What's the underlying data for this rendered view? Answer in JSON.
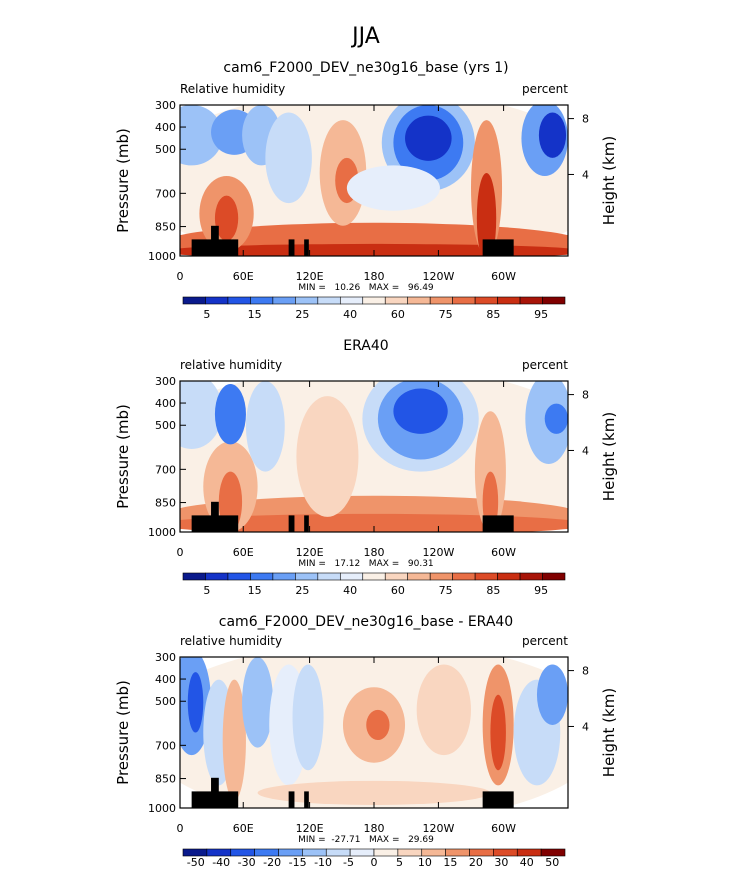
{
  "page_title": "JJA",
  "chart_data": [
    {
      "type": "heatmap",
      "title": "cam6_F2000_DEV_ne30g16_base (yrs 1)",
      "left_label": "Relative humidity",
      "right_label": "percent",
      "ylabel": "Pressure (mb)",
      "ylabel_right": "Height (km)",
      "y_ticks": [
        "300",
        "400",
        "500",
        "700",
        "850",
        "1000"
      ],
      "y_right_ticks": [
        "8",
        "4"
      ],
      "x_ticks": [
        "0",
        "60E",
        "120E",
        "180",
        "120W",
        "60W"
      ],
      "xlim": [
        0,
        360
      ],
      "ylim": [
        1000,
        300
      ],
      "stats": "MIN =   10.26   MAX =   96.49",
      "colorbar": {
        "labels": [
          "5",
          "15",
          "25",
          "40",
          "60",
          "75",
          "85",
          "95"
        ],
        "colors": [
          "#0a1a8c",
          "#1433c8",
          "#2255e6",
          "#3d7af2",
          "#6a9ff5",
          "#9cc2f7",
          "#c7dcf8",
          "#e6eefb",
          "#faf0e6",
          "#f9d6c0",
          "#f5b896",
          "#ef946a",
          "#e86e45",
          "#dc4b27",
          "#c92e12",
          "#a81408",
          "#800000"
        ]
      }
    },
    {
      "type": "heatmap",
      "title": "ERA40",
      "left_label": "relative humidity",
      "right_label": "percent",
      "ylabel": "Pressure (mb)",
      "ylabel_right": "Height (km)",
      "y_ticks": [
        "300",
        "400",
        "500",
        "700",
        "850",
        "1000"
      ],
      "y_right_ticks": [
        "8",
        "4"
      ],
      "x_ticks": [
        "0",
        "60E",
        "120E",
        "180",
        "120W",
        "60W"
      ],
      "xlim": [
        0,
        360
      ],
      "ylim": [
        1000,
        300
      ],
      "stats": "MIN =   17.12   MAX =   90.31",
      "colorbar": {
        "labels": [
          "5",
          "15",
          "25",
          "40",
          "60",
          "75",
          "85",
          "95"
        ],
        "colors": [
          "#0a1a8c",
          "#1433c8",
          "#2255e6",
          "#3d7af2",
          "#6a9ff5",
          "#9cc2f7",
          "#c7dcf8",
          "#e6eefb",
          "#faf0e6",
          "#f9d6c0",
          "#f5b896",
          "#ef946a",
          "#e86e45",
          "#dc4b27",
          "#c92e12",
          "#a81408",
          "#800000"
        ]
      }
    },
    {
      "type": "heatmap",
      "title": "cam6_F2000_DEV_ne30g16_base - ERA40",
      "left_label": "relative humidity",
      "right_label": "percent",
      "ylabel": "Pressure (mb)",
      "ylabel_right": "Height (km)",
      "y_ticks": [
        "300",
        "400",
        "500",
        "700",
        "850",
        "1000"
      ],
      "y_right_ticks": [
        "8",
        "4"
      ],
      "x_ticks": [
        "0",
        "60E",
        "120E",
        "180",
        "120W",
        "60W"
      ],
      "xlim": [
        0,
        360
      ],
      "ylim": [
        1000,
        300
      ],
      "stats": "MIN =  -27.71   MAX =   29.69",
      "colorbar": {
        "labels": [
          "-50",
          "-40",
          "-30",
          "-20",
          "-15",
          "-10",
          "-5",
          "0",
          "5",
          "10",
          "15",
          "20",
          "30",
          "40",
          "50"
        ],
        "colors": [
          "#0a1a8c",
          "#1433c8",
          "#2255e6",
          "#3d7af2",
          "#6a9ff5",
          "#9cc2f7",
          "#c7dcf8",
          "#e6eefb",
          "#faf0e6",
          "#f9d6c0",
          "#f5b896",
          "#ef946a",
          "#e86e45",
          "#dc4b27",
          "#c92e12",
          "#800000"
        ]
      }
    }
  ]
}
